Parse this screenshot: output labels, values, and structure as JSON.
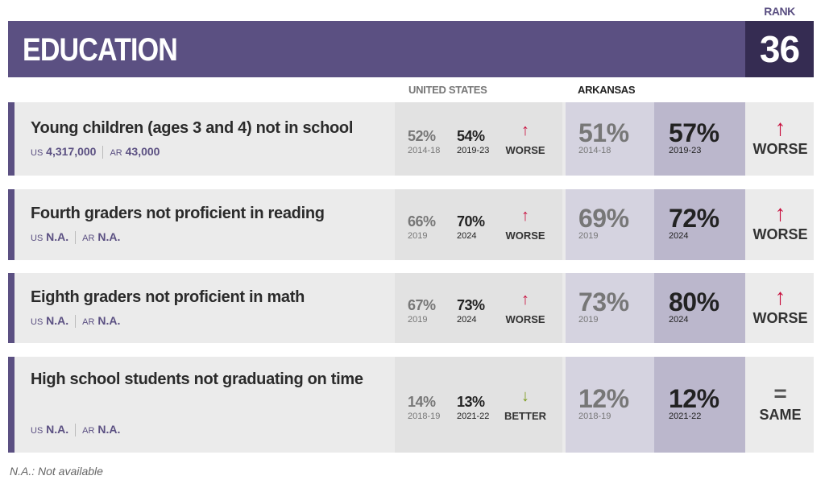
{
  "header": {
    "title": "EDUCATION",
    "rank_label": "RANK",
    "rank": "36"
  },
  "columns": {
    "us": "UNITED STATES",
    "state": "ARKANSAS"
  },
  "colors": {
    "purple": "#5b5082",
    "worse": "#c8103e",
    "better": "#7a9a1a"
  },
  "rows": [
    {
      "title": "Young children (ages 3 and 4) not in school",
      "us_count_label": "US",
      "us_count": "4,317,000",
      "ar_count_label": "AR",
      "ar_count": "43,000",
      "us_prev": "52%",
      "us_prev_year": "2014-18",
      "us_curr": "54%",
      "us_curr_year": "2019-23",
      "us_trend_icon": "arrow-up",
      "us_trend": "WORSE",
      "ar_prev": "51%",
      "ar_prev_year": "2014-18",
      "ar_curr": "57%",
      "ar_curr_year": "2019-23",
      "ar_trend_icon": "arrow-up",
      "ar_trend": "WORSE"
    },
    {
      "title": "Fourth graders not proficient in reading",
      "us_count_label": "US",
      "us_count": "N.A.",
      "ar_count_label": "AR",
      "ar_count": "N.A.",
      "us_prev": "66%",
      "us_prev_year": "2019",
      "us_curr": "70%",
      "us_curr_year": "2024",
      "us_trend_icon": "arrow-up",
      "us_trend": "WORSE",
      "ar_prev": "69%",
      "ar_prev_year": "2019",
      "ar_curr": "72%",
      "ar_curr_year": "2024",
      "ar_trend_icon": "arrow-up",
      "ar_trend": "WORSE"
    },
    {
      "title": "Eighth graders not proficient in math",
      "us_count_label": "US",
      "us_count": "N.A.",
      "ar_count_label": "AR",
      "ar_count": "N.A.",
      "us_prev": "67%",
      "us_prev_year": "2019",
      "us_curr": "73%",
      "us_curr_year": "2024",
      "us_trend_icon": "arrow-up",
      "us_trend": "WORSE",
      "ar_prev": "73%",
      "ar_prev_year": "2019",
      "ar_curr": "80%",
      "ar_curr_year": "2024",
      "ar_trend_icon": "arrow-up",
      "ar_trend": "WORSE"
    },
    {
      "title": "High school students not graduating on time",
      "us_count_label": "US",
      "us_count": "N.A.",
      "ar_count_label": "AR",
      "ar_count": "N.A.",
      "us_prev": "14%",
      "us_prev_year": "2018-19",
      "us_curr": "13%",
      "us_curr_year": "2021-22",
      "us_trend_icon": "arrow-down",
      "us_trend": "BETTER",
      "ar_prev": "12%",
      "ar_prev_year": "2018-19",
      "ar_curr": "12%",
      "ar_curr_year": "2021-22",
      "ar_trend_icon": "equals",
      "ar_trend": "SAME"
    }
  ],
  "footnote": "N.A.: Not available"
}
